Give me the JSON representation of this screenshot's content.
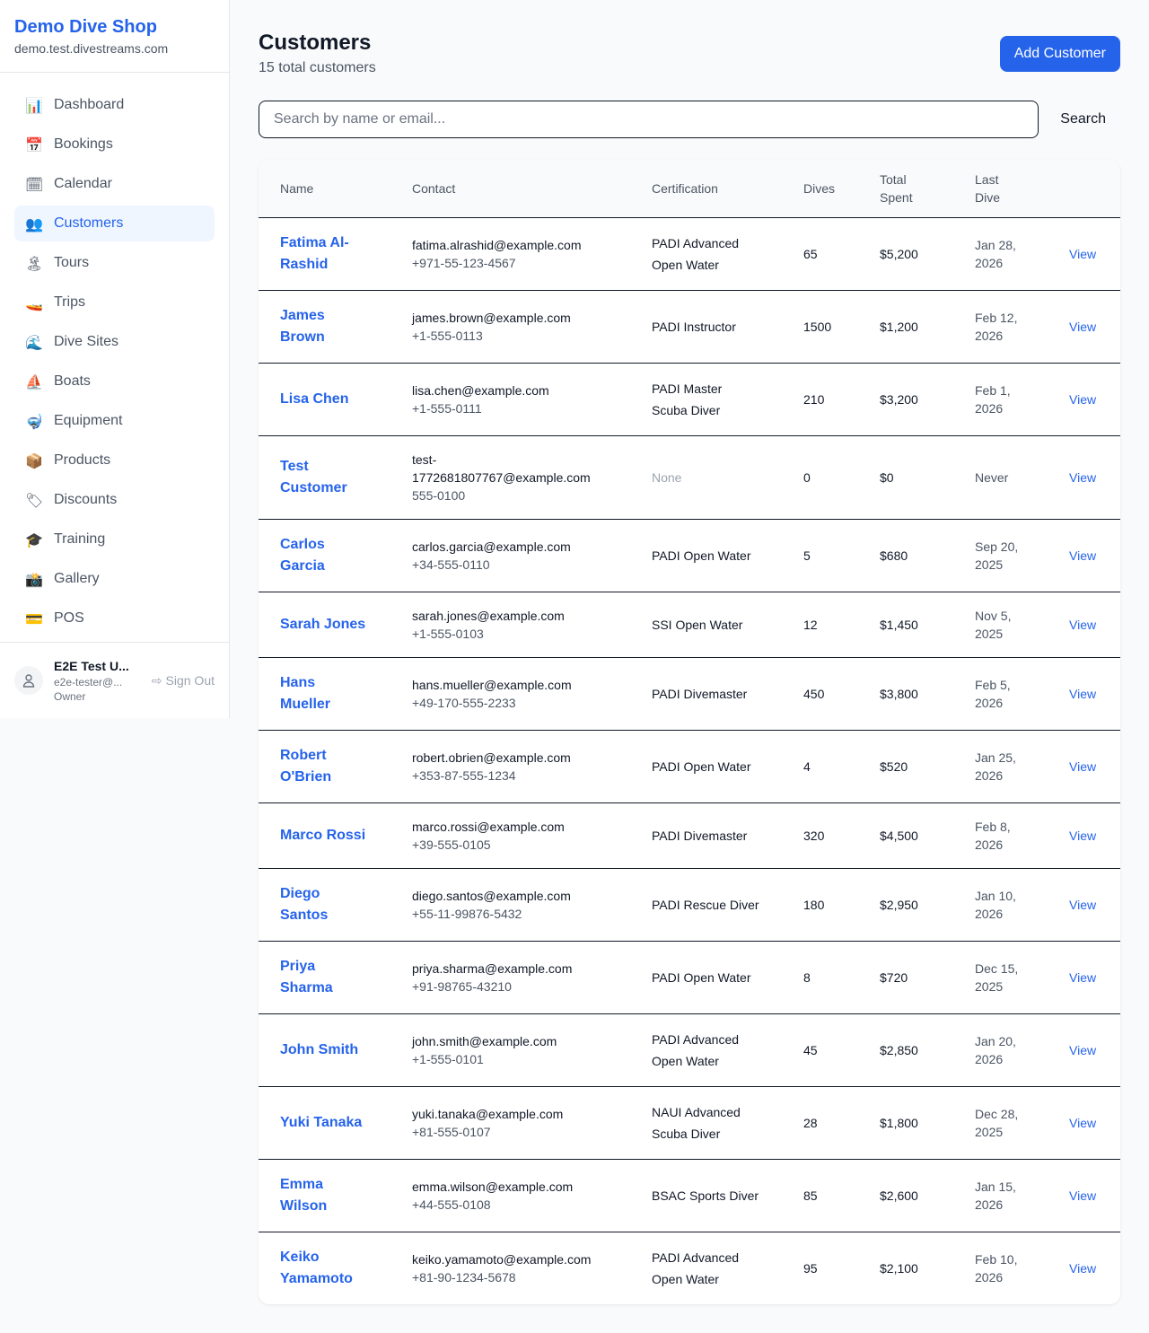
{
  "shop": {
    "name": "Demo Dive Shop",
    "domain": "demo.test.divestreams.com"
  },
  "nav": [
    {
      "label": "Dashboard",
      "icon": "📊",
      "active": false
    },
    {
      "label": "Bookings",
      "icon": "📅",
      "active": false
    },
    {
      "label": "Calendar",
      "icon": "🗓",
      "active": false
    },
    {
      "label": "Customers",
      "icon": "👥",
      "active": true
    },
    {
      "label": "Tours",
      "icon": "🏝",
      "active": false
    },
    {
      "label": "Trips",
      "icon": "🚤",
      "active": false
    },
    {
      "label": "Dive Sites",
      "icon": "🌊",
      "active": false
    },
    {
      "label": "Boats",
      "icon": "⛵",
      "active": false
    },
    {
      "label": "Equipment",
      "icon": "🤿",
      "active": false
    },
    {
      "label": "Products",
      "icon": "📦",
      "active": false
    },
    {
      "label": "Discounts",
      "icon": "🏷",
      "active": false
    },
    {
      "label": "Training",
      "icon": "🎓",
      "active": false
    },
    {
      "label": "Gallery",
      "icon": "📸",
      "active": false
    },
    {
      "label": "POS",
      "icon": "💳",
      "active": false
    }
  ],
  "user": {
    "name": "E2E Test U...",
    "email": "e2e-tester@...",
    "role": "Owner",
    "sign_out": "Sign Out"
  },
  "page": {
    "title": "Customers",
    "subtitle": "15 total customers",
    "add_button": "Add Customer",
    "search_placeholder": "Search by name or email...",
    "search_button": "Search"
  },
  "table": {
    "headers": [
      "Name",
      "Contact",
      "Certification",
      "Dives",
      "Total Spent",
      "Last Dive"
    ],
    "view_label": "View",
    "rows": [
      {
        "name": "Fatima Al-Rashid",
        "email": "fatima.alrashid@example.com",
        "phone": "+971-55-123-4567",
        "cert": "PADI Advanced Open Water",
        "dives": "65",
        "spent": "$5,200",
        "last": "Jan 28, 2026"
      },
      {
        "name": "James Brown",
        "email": "james.brown@example.com",
        "phone": "+1-555-0113",
        "cert": "PADI Instructor",
        "dives": "1500",
        "spent": "$1,200",
        "last": "Feb 12, 2026"
      },
      {
        "name": "Lisa Chen",
        "email": "lisa.chen@example.com",
        "phone": "+1-555-0111",
        "cert": "PADI Master Scuba Diver",
        "dives": "210",
        "spent": "$3,200",
        "last": "Feb 1, 2026"
      },
      {
        "name": "Test Customer",
        "email": "test-1772681807767@example.com",
        "phone": "555-0100",
        "cert": "None",
        "dives": "0",
        "spent": "$0",
        "last": "Never"
      },
      {
        "name": "Carlos Garcia",
        "email": "carlos.garcia@example.com",
        "phone": "+34-555-0110",
        "cert": "PADI Open Water",
        "dives": "5",
        "spent": "$680",
        "last": "Sep 20, 2025"
      },
      {
        "name": "Sarah Jones",
        "email": "sarah.jones@example.com",
        "phone": "+1-555-0103",
        "cert": "SSI Open Water",
        "dives": "12",
        "spent": "$1,450",
        "last": "Nov 5, 2025"
      },
      {
        "name": "Hans Mueller",
        "email": "hans.mueller@example.com",
        "phone": "+49-170-555-2233",
        "cert": "PADI Divemaster",
        "dives": "450",
        "spent": "$3,800",
        "last": "Feb 5, 2026"
      },
      {
        "name": "Robert O'Brien",
        "email": "robert.obrien@example.com",
        "phone": "+353-87-555-1234",
        "cert": "PADI Open Water",
        "dives": "4",
        "spent": "$520",
        "last": "Jan 25, 2026"
      },
      {
        "name": "Marco Rossi",
        "email": "marco.rossi@example.com",
        "phone": "+39-555-0105",
        "cert": "PADI Divemaster",
        "dives": "320",
        "spent": "$4,500",
        "last": "Feb 8, 2026"
      },
      {
        "name": "Diego Santos",
        "email": "diego.santos@example.com",
        "phone": "+55-11-99876-5432",
        "cert": "PADI Rescue Diver",
        "dives": "180",
        "spent": "$2,950",
        "last": "Jan 10, 2026"
      },
      {
        "name": "Priya Sharma",
        "email": "priya.sharma@example.com",
        "phone": "+91-98765-43210",
        "cert": "PADI Open Water",
        "dives": "8",
        "spent": "$720",
        "last": "Dec 15, 2025"
      },
      {
        "name": "John Smith",
        "email": "john.smith@example.com",
        "phone": "+1-555-0101",
        "cert": "PADI Advanced Open Water",
        "dives": "45",
        "spent": "$2,850",
        "last": "Jan 20, 2026"
      },
      {
        "name": "Yuki Tanaka",
        "email": "yuki.tanaka@example.com",
        "phone": "+81-555-0107",
        "cert": "NAUI Advanced Scuba Diver",
        "dives": "28",
        "spent": "$1,800",
        "last": "Dec 28, 2025"
      },
      {
        "name": "Emma Wilson",
        "email": "emma.wilson@example.com",
        "phone": "+44-555-0108",
        "cert": "BSAC Sports Diver",
        "dives": "85",
        "spent": "$2,600",
        "last": "Jan 15, 2026"
      },
      {
        "name": "Keiko Yamamoto",
        "email": "keiko.yamamoto@example.com",
        "phone": "+81-90-1234-5678",
        "cert": "PADI Advanced Open Water",
        "dives": "95",
        "spent": "$2,100",
        "last": "Feb 10, 2026"
      }
    ]
  },
  "colors": {
    "accent": "#2563eb",
    "active_bg": "#eff6ff"
  }
}
